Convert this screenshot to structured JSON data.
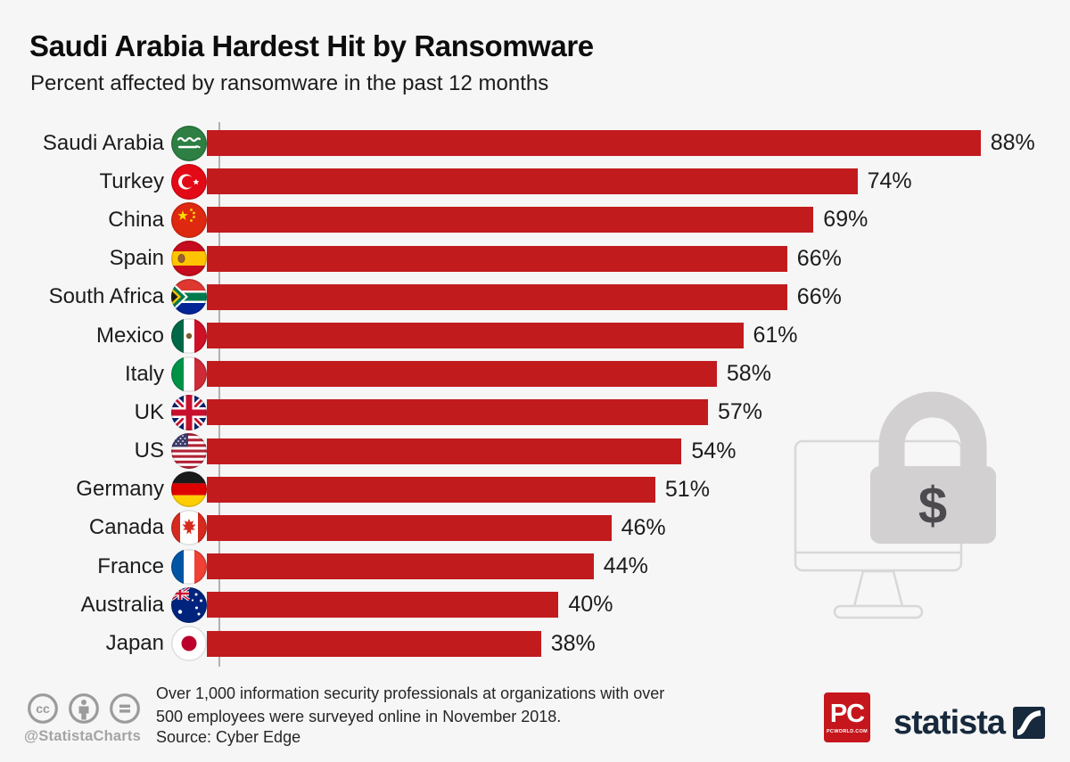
{
  "header": {
    "title": "Saudi Arabia Hardest Hit by Ransomware",
    "subtitle": "Percent affected by ransomware in the past 12 months"
  },
  "chart_data": {
    "type": "bar",
    "orientation": "horizontal",
    "title": "Saudi Arabia Hardest Hit by Ransomware",
    "subtitle": "Percent affected by ransomware in the past 12 months",
    "categories": [
      "Saudi Arabia",
      "Turkey",
      "China",
      "Spain",
      "South Africa",
      "Mexico",
      "Italy",
      "UK",
      "US",
      "Germany",
      "Canada",
      "France",
      "Australia",
      "Japan"
    ],
    "values": [
      88,
      74,
      69,
      66,
      66,
      61,
      58,
      57,
      54,
      51,
      46,
      44,
      40,
      38
    ],
    "value_suffix": "%",
    "xlim": [
      0,
      100
    ],
    "grid": false,
    "legend": false,
    "x_axis_visible": false,
    "bar_color": "#c21b1e"
  },
  "illustration": {
    "dollar_sign": "$"
  },
  "footer": {
    "license_icons": [
      "cc-icon",
      "attribution-person-icon",
      "equals-icon"
    ],
    "handle": "@StatistaCharts",
    "note_lines": [
      "Over 1,000 information security professionals at organizations with over",
      "500 employees were surveyed online in November 2018."
    ],
    "source": "Source: Cyber Edge",
    "pcworld_logo": {
      "abbr": "PC",
      "domain": "PCWORLD.COM"
    },
    "statista_wordmark": "statista"
  },
  "colors": {
    "background": "#f6f6f6",
    "bar": "#c21b1e",
    "statista_navy": "#17293c",
    "pcworld_red": "#c5161d",
    "footer_gray": "#9b9b9b",
    "illustration_gray": "#d2d0d1"
  }
}
